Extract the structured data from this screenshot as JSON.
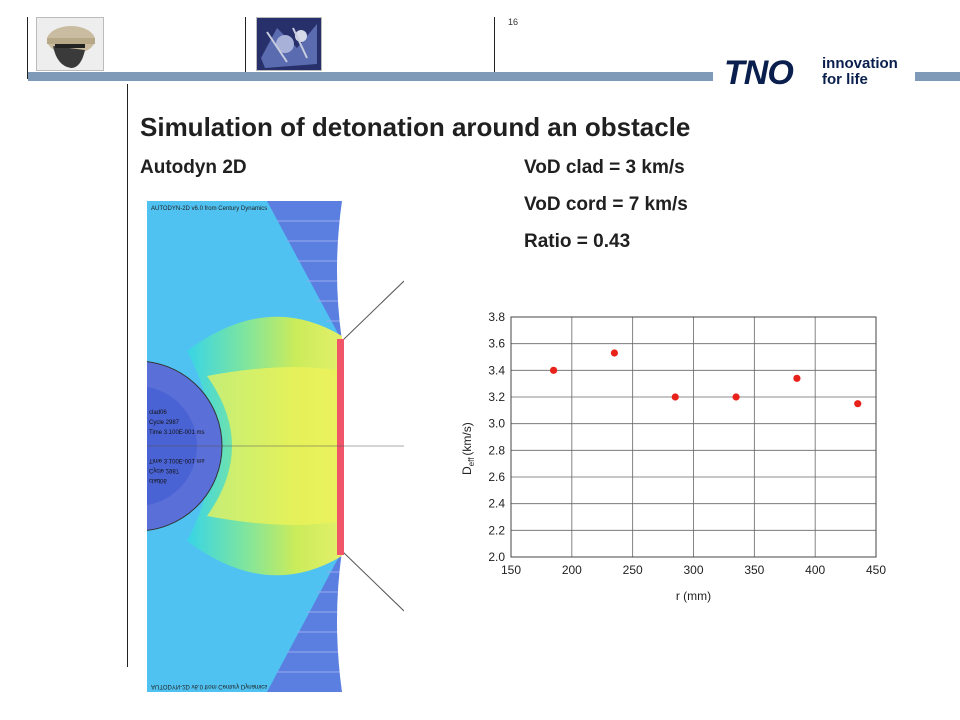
{
  "slide": {
    "page_number": "16",
    "title": "Simulation of detonation around an obstacle",
    "subtitle_left": "Autodyn 2D",
    "info_lines": [
      "VoD clad = 3 km/s",
      "VoD cord = 7 km/s",
      "Ratio = 0.43"
    ],
    "accent_color": "#7f9ab8"
  },
  "logo": {
    "brand": "TNO",
    "tagline_line1": "innovation",
    "tagline_line2": "for life",
    "brand_color": "#0a1f4d"
  },
  "simulation": {
    "header": "AUTODYN-2D v6.0 from Century Dynamics",
    "footer_mirrored": "AUTODYN-2D v6.0 from Century Dynamics",
    "labels": [
      "clad06",
      "Cycle 2987",
      "Time 3.100E-001 ms"
    ],
    "mirrored_labels": [
      "Time 3.100E-001 ms",
      "Cycle 2987",
      "clad06"
    ]
  },
  "chart_data": {
    "type": "scatter",
    "xlabel": "r (mm)",
    "ylabel_main": "D",
    "ylabel_sub": "eff",
    "ylabel_unit": "(km/s)",
    "xlim": [
      150,
      450
    ],
    "ylim": [
      2.0,
      3.8
    ],
    "x_ticks": [
      150,
      200,
      250,
      300,
      350,
      400,
      450
    ],
    "y_ticks": [
      "2.0",
      "2.2",
      "2.4",
      "2.6",
      "2.8",
      "3.0",
      "3.2",
      "3.4",
      "3.6",
      "3.8"
    ],
    "grid": true,
    "marker_color": "#e8221b",
    "series": [
      {
        "x": [
          185,
          235,
          285,
          335,
          385,
          435
        ],
        "values": [
          3.4,
          3.53,
          3.2,
          3.2,
          3.34,
          3.15
        ]
      }
    ]
  }
}
